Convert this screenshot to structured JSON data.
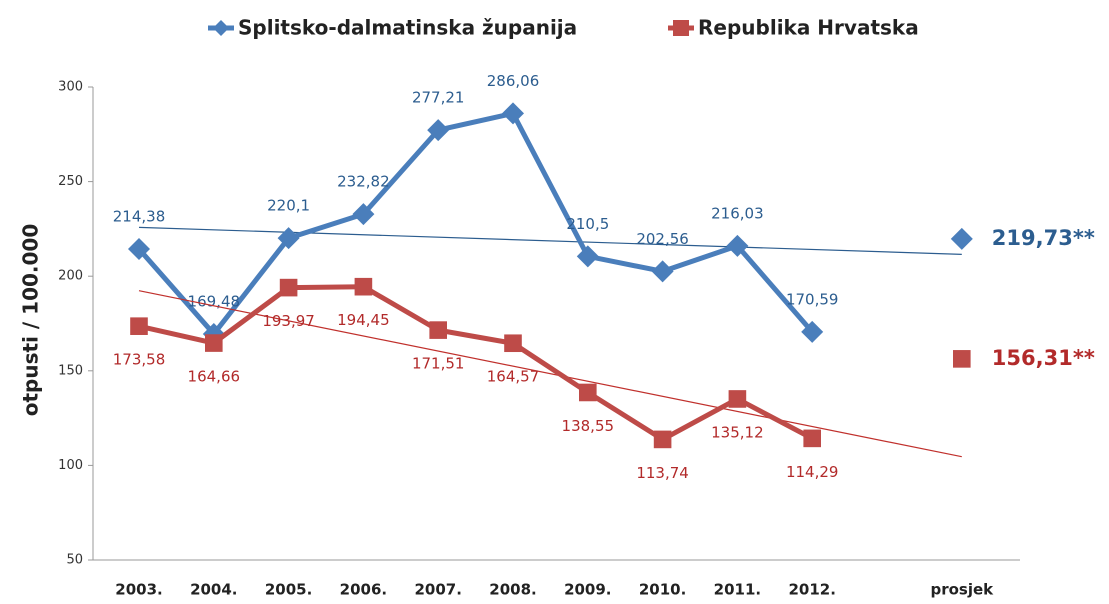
{
  "chart_data": {
    "type": "line",
    "y_label": "otpusti / 100.000",
    "categories": [
      "2003.",
      "2004.",
      "2005.",
      "2006.",
      "2007.",
      "2008.",
      "2009.",
      "2010.",
      "2011.",
      "2012.",
      null,
      "prosjek"
    ],
    "ylim": [
      50,
      300
    ],
    "yticks": [
      50,
      100,
      150,
      200,
      250,
      300
    ],
    "trendline": true,
    "series": [
      {
        "name": "Splitsko-dalmatinska županija",
        "color": "#4a7ebb",
        "label_color": "#2c5d8f",
        "marker": "diamond",
        "label_side": "above",
        "values": [
          214.38,
          169.48,
          220.1,
          232.82,
          277.21,
          286.06,
          210.5,
          202.56,
          216.03,
          170.59,
          null,
          219.73
        ],
        "value_labels": [
          "214,38",
          "169,48",
          "220,1",
          "232,82",
          "277,21",
          "286,06",
          "210,5",
          "202,56",
          "216,03",
          "170,59",
          null,
          "219,73**"
        ]
      },
      {
        "name": "Republika Hrvatska",
        "color": "#be4b48",
        "label_color": "#b22a2a",
        "marker": "square",
        "label_side": "below",
        "values": [
          173.58,
          164.66,
          193.97,
          194.45,
          171.51,
          164.57,
          138.55,
          113.74,
          135.12,
          114.29,
          null,
          156.31
        ],
        "value_labels": [
          "173,58",
          "164,66",
          "193,97",
          "194,45",
          "171,51",
          "164,57",
          "138,55",
          "113,74",
          "135,12",
          "114,29",
          null,
          "156,31**"
        ]
      }
    ]
  }
}
